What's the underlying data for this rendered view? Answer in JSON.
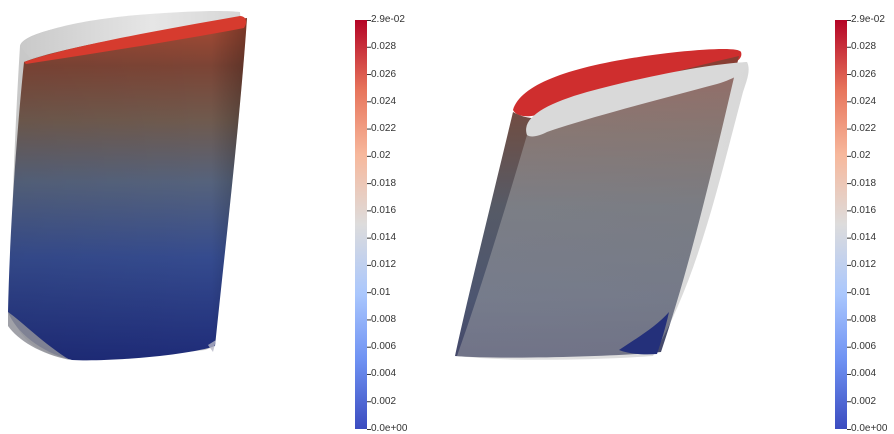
{
  "colormap": {
    "name": "Cool to Warm",
    "stops": [
      "#3b4cc0",
      "#6f92f3",
      "#aac7fd",
      "#dddcdc",
      "#f7b89c",
      "#e7745b",
      "#b40426"
    ]
  },
  "views": [
    {
      "colorbar": {
        "max_label": "2.9e-02",
        "min_label": "0.0e+00",
        "ticks": [
          "0.028",
          "0.026",
          "0.024",
          "0.022",
          "0.02",
          "0.018",
          "0.016",
          "0.014",
          "0.012",
          "0.01",
          "0.008",
          "0.006",
          "0.004",
          "0.002"
        ]
      }
    },
    {
      "colorbar": {
        "max_label": "2.9e-02",
        "min_label": "0.0e+00",
        "ticks": [
          "0.028",
          "0.026",
          "0.024",
          "0.022",
          "0.02",
          "0.018",
          "0.016",
          "0.014",
          "0.012",
          "0.01",
          "0.008",
          "0.006",
          "0.004",
          "0.002"
        ]
      }
    }
  ]
}
